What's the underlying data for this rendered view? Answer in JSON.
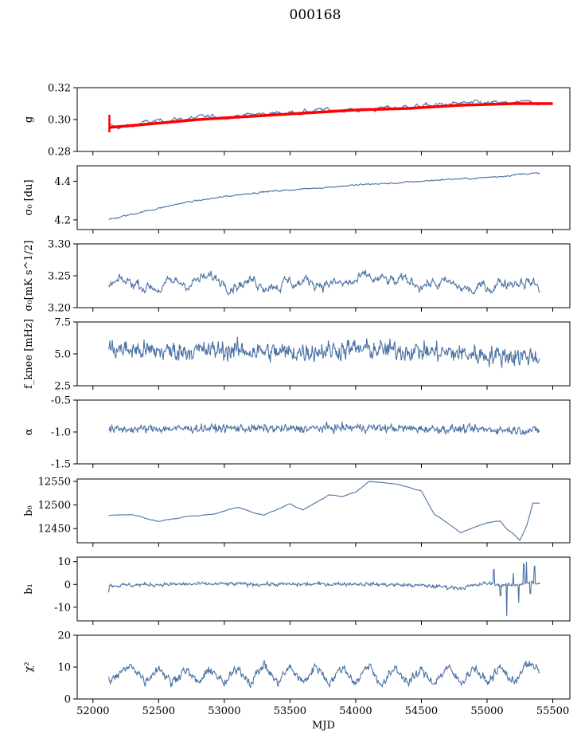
{
  "title": "000168",
  "colors": {
    "series": "#4c72a4",
    "fit": "#ff0000",
    "axis": "#000000"
  },
  "chart_data": [
    {
      "type": "line",
      "ylabel": "g",
      "ylim": [
        0.28,
        0.32
      ],
      "yticks": [
        "0.28",
        "0.30",
        "0.32"
      ],
      "ytick_values": [
        0.28,
        0.3,
        0.32
      ],
      "x": [
        52120,
        52200,
        52400,
        52600,
        52800,
        53000,
        53200,
        53400,
        53600,
        53800,
        54000,
        54200,
        54400,
        54600,
        54800,
        55000,
        55200,
        55400
      ],
      "y": [
        0.296,
        0.295,
        0.298,
        0.3,
        0.301,
        0.302,
        0.303,
        0.304,
        0.305,
        0.306,
        0.306,
        0.307,
        0.308,
        0.309,
        0.31,
        0.31,
        0.31,
        0.311
      ],
      "noise": 0.0012,
      "noise_corr": 0.85,
      "fit": {
        "x": [
          52120,
          52400,
          52800,
          53200,
          53600,
          54000,
          54400,
          54800,
          55200,
          55500
        ],
        "y": [
          0.295,
          0.297,
          0.3,
          0.302,
          0.304,
          0.306,
          0.307,
          0.309,
          0.31,
          0.31
        ]
      }
    },
    {
      "type": "line",
      "ylabel": "σ₀ [du]",
      "ylim": [
        4.15,
        4.48
      ],
      "yticks": [
        "4.2",
        "4.4"
      ],
      "ytick_values": [
        4.2,
        4.4
      ],
      "x": [
        52120,
        52300,
        52500,
        52700,
        52900,
        53100,
        53300,
        53500,
        53700,
        53900,
        54100,
        54300,
        54500,
        54700,
        54900,
        55100,
        55300,
        55400
      ],
      "y": [
        4.2,
        4.23,
        4.26,
        4.29,
        4.31,
        4.33,
        4.345,
        4.355,
        4.365,
        4.375,
        4.385,
        4.39,
        4.4,
        4.41,
        4.415,
        4.425,
        4.44,
        4.44
      ],
      "noise": 0.003,
      "noise_corr": 0.7
    },
    {
      "type": "line",
      "ylabel": "σ₀[mK s^1/2]",
      "ylim": [
        3.2,
        3.3
      ],
      "yticks": [
        "3.20",
        "3.25",
        "3.30"
      ],
      "ytick_values": [
        3.2,
        3.25,
        3.3
      ],
      "x": [
        52120,
        52300,
        52500,
        52700,
        52900,
        53100,
        53300,
        53500,
        53700,
        53900,
        54100,
        54300,
        54500,
        54700,
        54900,
        55100,
        55300,
        55400
      ],
      "y": [
        3.235,
        3.24,
        3.232,
        3.24,
        3.245,
        3.242,
        3.24,
        3.238,
        3.242,
        3.235,
        3.245,
        3.238,
        3.24,
        3.236,
        3.225,
        3.24,
        3.245,
        3.23
      ],
      "noise": 0.009,
      "noise_corr": 0.85
    },
    {
      "type": "line",
      "ylabel": "f_knee [mHz]",
      "ylim": [
        2.5,
        7.5
      ],
      "yticks": [
        "2.5",
        "5.0",
        "7.5"
      ],
      "ytick_values": [
        2.5,
        5.0,
        7.5
      ],
      "x": [
        52120,
        52500,
        53000,
        53500,
        54000,
        54500,
        55000,
        55400
      ],
      "y": [
        5.4,
        5.2,
        5.3,
        5.1,
        5.4,
        5.2,
        4.9,
        4.8
      ],
      "noise": 0.55,
      "noise_corr": 0.3
    },
    {
      "type": "line",
      "ylabel": "α",
      "ylim": [
        -1.5,
        -0.5
      ],
      "yticks": [
        "-1.5",
        "-1.0",
        "-0.5"
      ],
      "ytick_values": [
        -1.5,
        -1.0,
        -0.5
      ],
      "x": [
        52120,
        52500,
        53000,
        53500,
        54000,
        54500,
        55000,
        55400
      ],
      "y": [
        -0.96,
        -0.95,
        -0.94,
        -0.95,
        -0.93,
        -0.95,
        -0.96,
        -0.98
      ],
      "noise": 0.045,
      "noise_corr": 0.3
    },
    {
      "type": "line",
      "ylabel": "b₀",
      "ylim": [
        12420,
        12555
      ],
      "yticks": [
        "12450",
        "12500",
        "12550"
      ],
      "ytick_values": [
        12450,
        12500,
        12550
      ],
      "x": [
        52120,
        52300,
        52500,
        52700,
        52900,
        53100,
        53300,
        53500,
        53600,
        53800,
        53900,
        54000,
        54100,
        54300,
        54500,
        54600,
        54800,
        55000,
        55100,
        55150,
        55200,
        55250,
        55300,
        55350,
        55400
      ],
      "y": [
        12478,
        12480,
        12465,
        12475,
        12480,
        12495,
        12478,
        12502,
        12490,
        12522,
        12518,
        12528,
        12550,
        12545,
        12530,
        12480,
        12442,
        12462,
        12468,
        12450,
        12440,
        12425,
        12455,
        12505,
        12505
      ],
      "noise": 0.8,
      "noise_corr": 0.9
    },
    {
      "type": "line",
      "ylabel": "b₁",
      "ylim": [
        -16,
        12
      ],
      "yticks": [
        "-10",
        "0",
        "10"
      ],
      "ytick_values": [
        -10,
        0,
        10
      ],
      "x": [
        52120,
        52500,
        53000,
        53500,
        54000,
        54500,
        54800,
        55000,
        55100,
        55200,
        55300,
        55400
      ],
      "y": [
        -0.5,
        0,
        0.2,
        0,
        0.3,
        -0.5,
        -1.5,
        0.5,
        0,
        -0.5,
        1,
        0
      ],
      "noise": 0.6,
      "noise_corr": 0.5,
      "spikes": [
        [
          52120,
          -3.5
        ],
        [
          55050,
          6.5
        ],
        [
          55100,
          -5
        ],
        [
          55150,
          -14
        ],
        [
          55200,
          5
        ],
        [
          55240,
          -8
        ],
        [
          55280,
          9
        ],
        [
          55300,
          10
        ],
        [
          55330,
          -4
        ],
        [
          55360,
          8
        ]
      ]
    },
    {
      "type": "line",
      "ylabel": "χ²",
      "xlabel": "MJD",
      "ylim": [
        0,
        20
      ],
      "yticks": [
        "0",
        "10",
        "20"
      ],
      "ytick_values": [
        0,
        10,
        20
      ],
      "x": [
        52120,
        52140,
        52200,
        52300,
        52400,
        52500,
        52600,
        52700,
        52800,
        52900,
        53000,
        53100,
        53200,
        53300,
        53400,
        53500,
        53600,
        53700,
        53800,
        53900,
        54000,
        54100,
        54200,
        54300,
        54400,
        54500,
        54600,
        54700,
        54800,
        54900,
        55000,
        55100,
        55200,
        55300,
        55400
      ],
      "y": [
        7,
        5.5,
        8,
        10.5,
        5.5,
        10,
        5,
        9.5,
        5,
        9.5,
        4.5,
        10,
        5,
        11,
        5,
        10,
        5,
        10.5,
        5,
        10,
        5,
        11,
        4,
        10,
        5,
        9,
        5,
        10,
        5,
        10,
        5,
        10,
        5,
        11,
        9
      ],
      "noise": 1.0,
      "noise_corr": 0.4,
      "xticks": [
        "52000",
        "52500",
        "53000",
        "53500",
        "54000",
        "54500",
        "55000",
        "55500"
      ],
      "xtick_values": [
        52000,
        52500,
        53000,
        53500,
        54000,
        54500,
        55000,
        55500
      ]
    }
  ],
  "xlim": [
    51880,
    55630
  ]
}
